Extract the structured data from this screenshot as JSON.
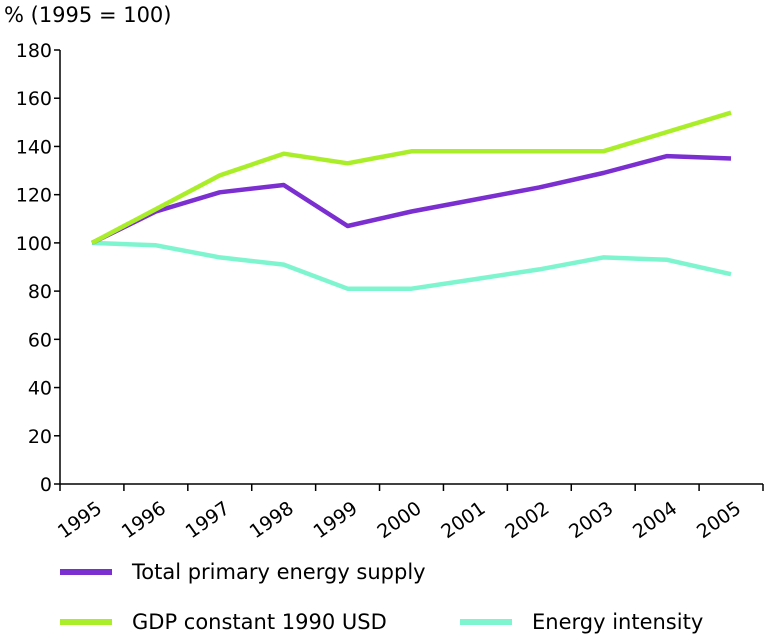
{
  "chart_data": {
    "type": "line",
    "unit_label": "% (1995 = 100)",
    "x": [
      "1995",
      "1996",
      "1997",
      "1998",
      "1999",
      "2000",
      "2001",
      "2002",
      "2003",
      "2004",
      "2005"
    ],
    "ylim": [
      0,
      180
    ],
    "yticks": [
      0,
      20,
      40,
      60,
      80,
      100,
      120,
      140,
      160,
      180
    ],
    "grid": false,
    "legend_position": "bottom",
    "series": [
      {
        "name": "Total primary energy supply",
        "color": "#7b2fd1",
        "values": [
          100,
          113,
          121,
          124,
          107,
          113,
          118,
          123,
          129,
          136,
          135
        ]
      },
      {
        "name": "GDP constant 1990 USD",
        "color": "#aaee2a",
        "values": [
          100,
          114,
          128,
          137,
          133,
          138,
          138,
          138,
          138,
          146,
          154
        ]
      },
      {
        "name": "Energy intensity",
        "color": "#7ff5cf",
        "values": [
          100,
          99,
          94,
          91,
          81,
          81,
          85,
          89,
          94,
          93,
          87
        ]
      }
    ]
  }
}
